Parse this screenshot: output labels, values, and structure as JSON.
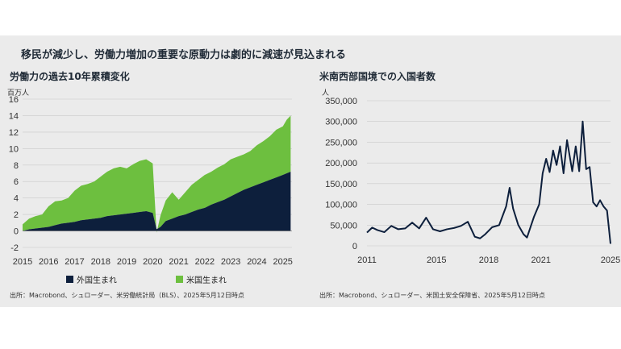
{
  "headline": "移民が減少し、労働力増加の重要な原動力は劇的に減速が見込まれる",
  "colors": {
    "foreign": "#0d1f3c",
    "native": "#6dbf3f",
    "line": "#0d1f3c",
    "panel": "#ebebeb"
  },
  "chart_data": [
    {
      "type": "area",
      "title": "労働力の過去10年累積変化",
      "unit": "百万人",
      "ylim": [
        -2,
        16
      ],
      "yticks": [
        "-2",
        "0",
        "2",
        "4",
        "6",
        "8",
        "10",
        "12",
        "14",
        "16"
      ],
      "xlim": [
        2015,
        2025.35
      ],
      "xticks": [
        "2015",
        "2016",
        "2017",
        "2018",
        "2019",
        "2020",
        "2021",
        "2022",
        "2023",
        "2024",
        "2025"
      ],
      "x": [
        2015.0,
        2015.25,
        2015.5,
        2015.75,
        2016.0,
        2016.25,
        2016.5,
        2016.75,
        2017.0,
        2017.25,
        2017.5,
        2017.75,
        2018.0,
        2018.25,
        2018.5,
        2018.75,
        2019.0,
        2019.25,
        2019.5,
        2019.75,
        2020.0,
        2020.15,
        2020.3,
        2020.5,
        2020.75,
        2021.0,
        2021.25,
        2021.5,
        2021.75,
        2022.0,
        2022.25,
        2022.5,
        2022.75,
        2023.0,
        2023.25,
        2023.5,
        2023.75,
        2024.0,
        2024.25,
        2024.5,
        2024.75,
        2025.0,
        2025.15,
        2025.3
      ],
      "series": [
        {
          "name": "外国生まれ",
          "values": [
            0.0,
            0.2,
            0.3,
            0.4,
            0.5,
            0.7,
            0.9,
            1.0,
            1.1,
            1.3,
            1.4,
            1.5,
            1.6,
            1.8,
            1.9,
            2.0,
            2.1,
            2.2,
            2.3,
            2.4,
            2.2,
            0.2,
            0.5,
            1.2,
            1.5,
            1.8,
            2.0,
            2.3,
            2.6,
            2.8,
            3.2,
            3.5,
            3.8,
            4.2,
            4.6,
            5.0,
            5.3,
            5.6,
            5.9,
            6.2,
            6.5,
            6.8,
            7.0,
            7.2
          ]
        },
        {
          "name": "米国生まれ",
          "values": [
            0.8,
            1.3,
            1.5,
            1.6,
            2.5,
            2.9,
            2.8,
            3.0,
            3.8,
            4.2,
            4.3,
            4.5,
            5.0,
            5.4,
            5.7,
            5.8,
            5.5,
            5.9,
            6.2,
            6.3,
            6.0,
            -0.4,
            1.4,
            2.5,
            3.2,
            2.0,
            2.7,
            3.3,
            3.6,
            4.0,
            4.0,
            4.2,
            4.3,
            4.5,
            4.4,
            4.3,
            4.4,
            4.8,
            5.0,
            5.3,
            5.8,
            5.9,
            6.5,
            6.8
          ]
        }
      ],
      "legend": "bottom"
    },
    {
      "type": "line",
      "title": "米南西部国境での入国者数",
      "unit": "人",
      "ylim": [
        0,
        350000
      ],
      "yticks": [
        "0",
        "50,000",
        "100,000",
        "150,000",
        "200,000",
        "250,000",
        "300,000",
        "350,000"
      ],
      "xlim": [
        2011,
        2025
      ],
      "xticks": [
        "2011",
        "2015",
        "2018",
        "2021",
        "2025"
      ],
      "x": [
        2011.0,
        2011.3,
        2011.6,
        2012.0,
        2012.4,
        2012.8,
        2013.2,
        2013.6,
        2014.0,
        2014.4,
        2014.8,
        2015.2,
        2015.6,
        2016.0,
        2016.4,
        2016.8,
        2017.2,
        2017.5,
        2017.8,
        2018.2,
        2018.6,
        2019.0,
        2019.2,
        2019.4,
        2019.7,
        2020.0,
        2020.2,
        2020.4,
        2020.6,
        2020.9,
        2021.1,
        2021.3,
        2021.5,
        2021.7,
        2021.9,
        2022.1,
        2022.3,
        2022.5,
        2022.8,
        2023.0,
        2023.2,
        2023.4,
        2023.6,
        2023.8,
        2024.0,
        2024.2,
        2024.4,
        2024.6,
        2024.8,
        2025.0
      ],
      "values": [
        32000,
        44000,
        38000,
        33000,
        48000,
        40000,
        42000,
        56000,
        42000,
        68000,
        40000,
        35000,
        40000,
        43000,
        48000,
        58000,
        22000,
        18000,
        28000,
        45000,
        50000,
        95000,
        140000,
        90000,
        50000,
        28000,
        20000,
        45000,
        70000,
        100000,
        175000,
        210000,
        178000,
        230000,
        195000,
        240000,
        175000,
        255000,
        180000,
        240000,
        180000,
        300000,
        185000,
        190000,
        105000,
        95000,
        110000,
        95000,
        85000,
        5000
      ],
      "grid": true
    }
  ],
  "legend_labels": [
    "外国生まれ",
    "米国生まれ"
  ],
  "sources": [
    "出所：Macrobond、シュローダー、米労働統計局（BLS）、2025年5月12日時点",
    "出所：Macrobond、シュローダー、米国土安全保障省、2025年5月12日時点"
  ]
}
